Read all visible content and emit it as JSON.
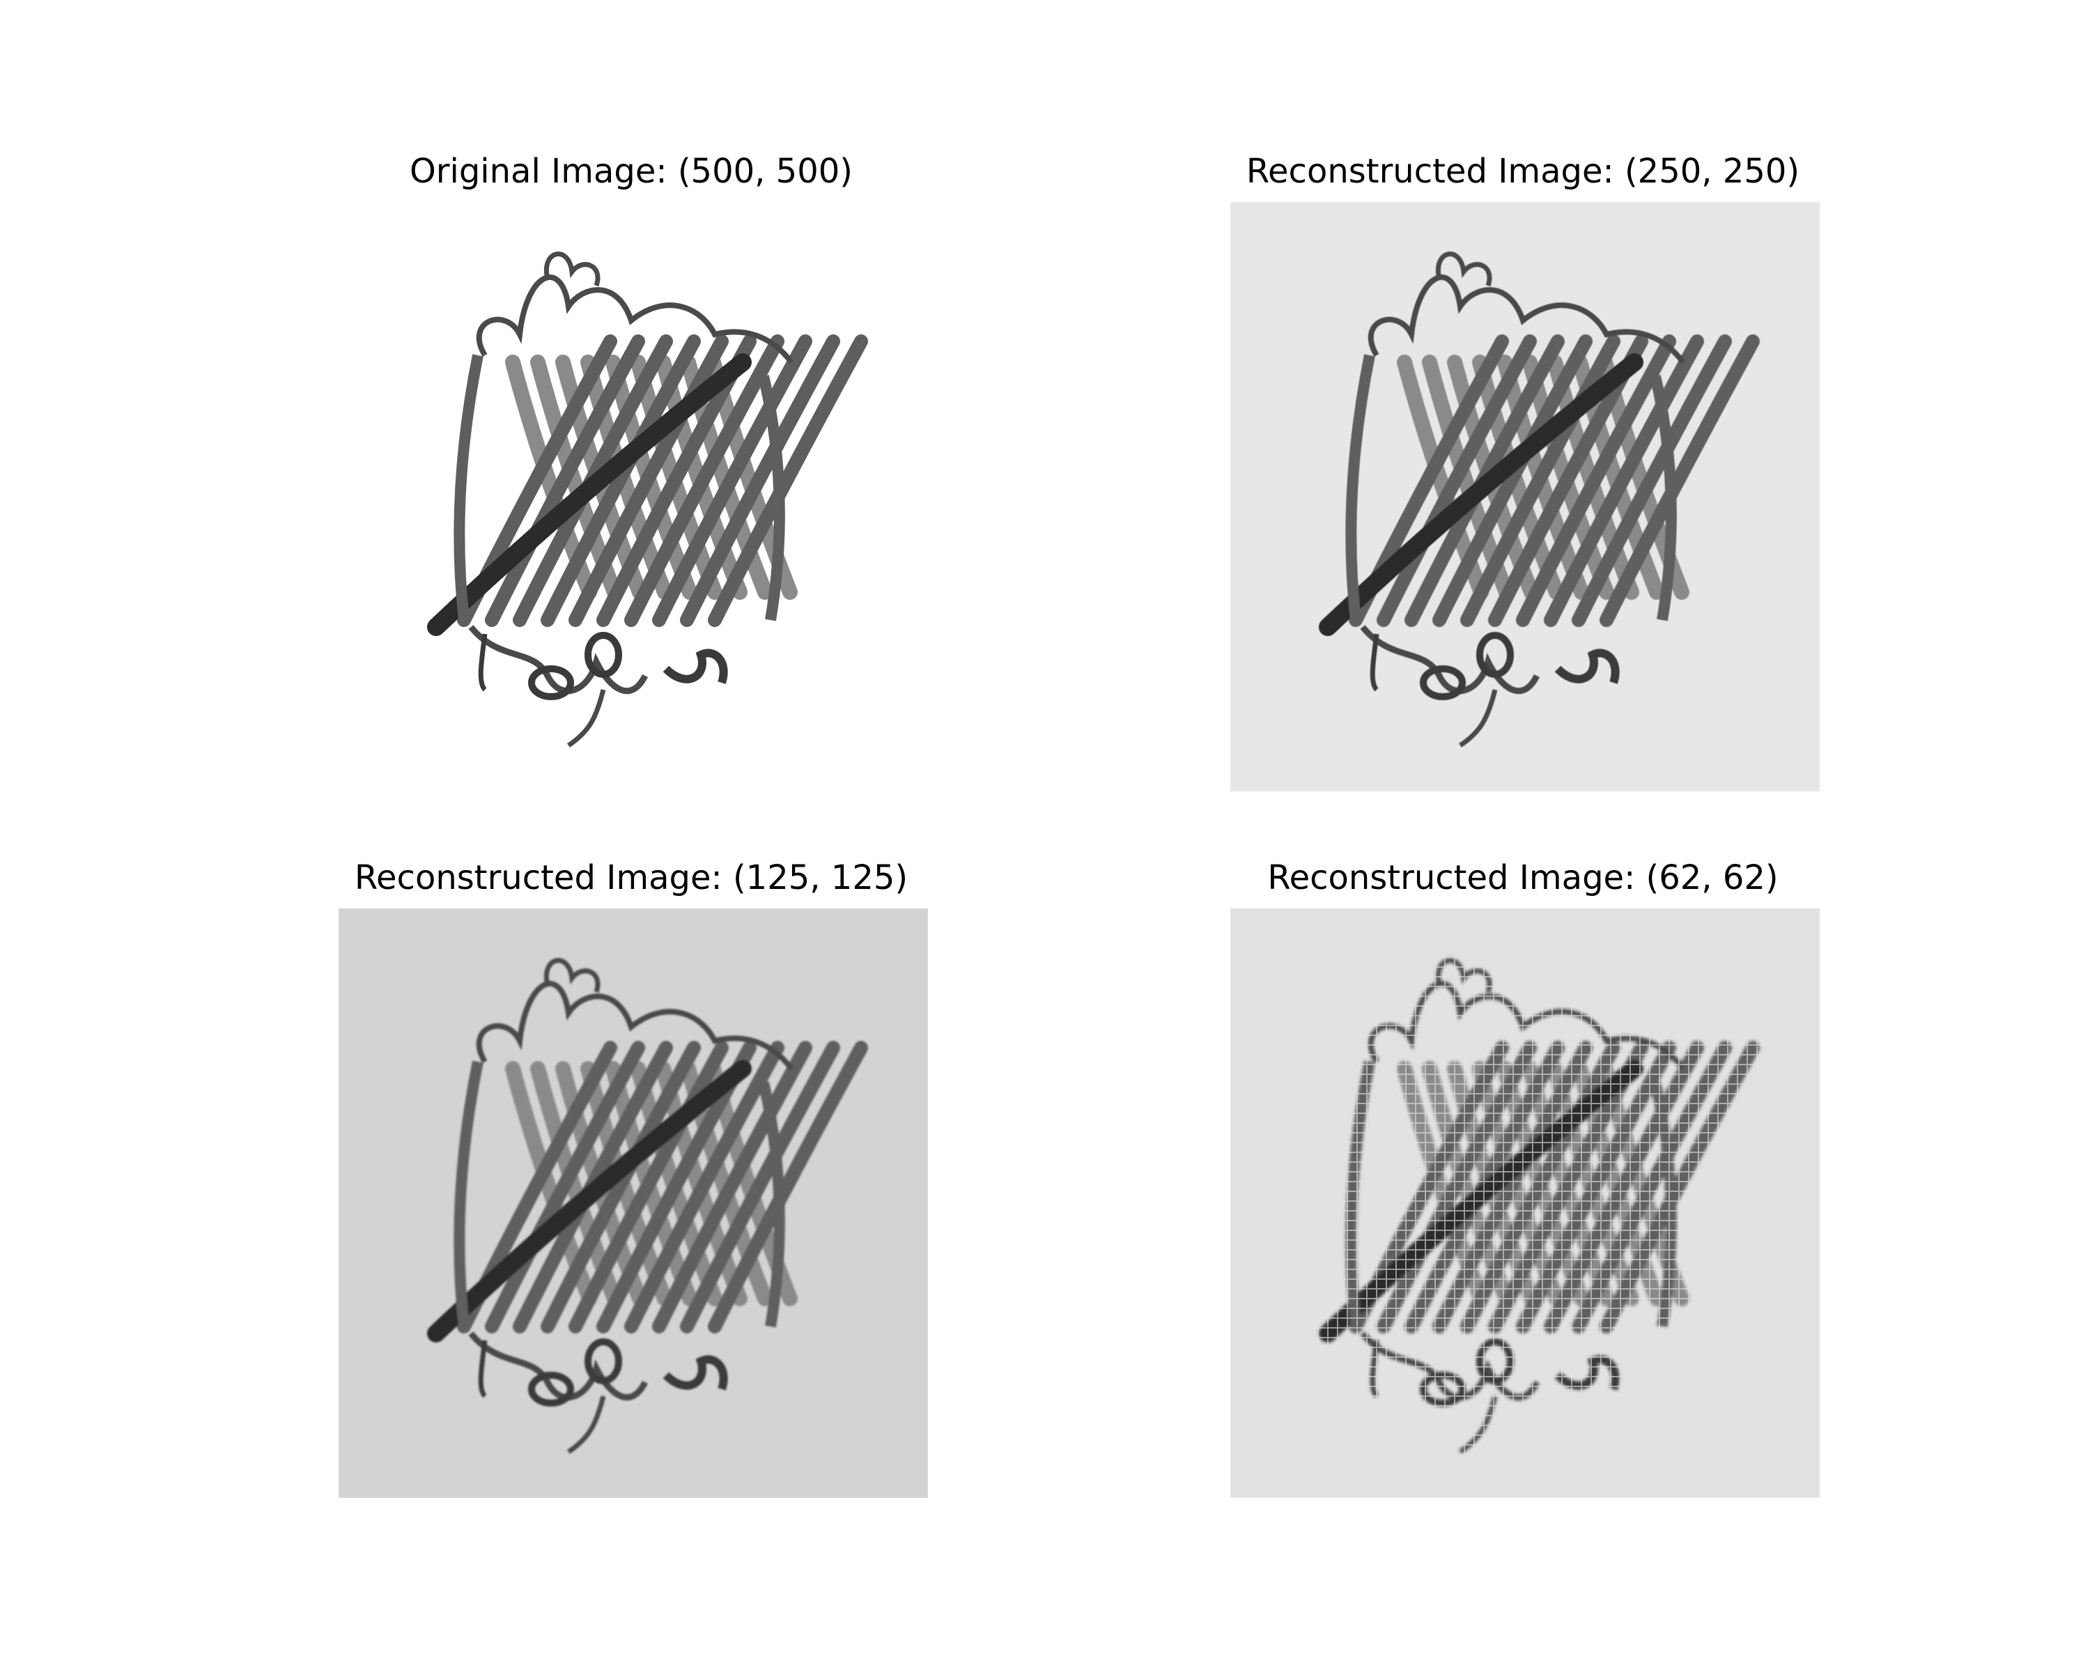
{
  "figure": {
    "panels": [
      {
        "title": "Original Image: (500, 500)",
        "background": "#ffffff",
        "blur": 0,
        "pixelate": false
      },
      {
        "title": "Reconstructed Image: (250, 250)",
        "background": "#e7e7e7",
        "blur": 0.6,
        "pixelate": false
      },
      {
        "title": "Reconstructed Image: (125, 125)",
        "background": "#d3d3d3",
        "blur": 1.4,
        "pixelate": false
      },
      {
        "title": "Reconstructed Image: (62, 62)",
        "background": "#e2e2e2",
        "blur": 2.4,
        "pixelate": true
      }
    ]
  },
  "subject": "protein-beta-barrel-ribbon",
  "colors": {
    "ribbon_dark": "#2b2b2b",
    "ribbon_mid": "#5e5e5e",
    "ribbon_light": "#8a8a8a",
    "text": "#000000"
  }
}
